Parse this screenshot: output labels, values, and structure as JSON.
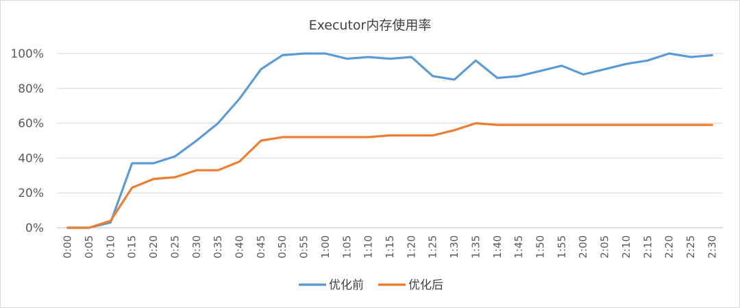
{
  "chart_data": {
    "type": "line",
    "title": "Executor内存使用率",
    "xlabel": "",
    "ylabel": "",
    "ylim": [
      0,
      100
    ],
    "yticks": [
      "0%",
      "20%",
      "40%",
      "60%",
      "80%",
      "100%"
    ],
    "categories": [
      "0:00",
      "0:05",
      "0:10",
      "0:15",
      "0:20",
      "0:25",
      "0:30",
      "0:35",
      "0:40",
      "0:45",
      "0:50",
      "0:55",
      "1:00",
      "1:05",
      "1:10",
      "1:15",
      "1:20",
      "1:25",
      "1:30",
      "1:35",
      "1:40",
      "1:45",
      "1:50",
      "1:55",
      "2:00",
      "2:05",
      "2:10",
      "2:15",
      "2:20",
      "2:25",
      "2:30"
    ],
    "series": [
      {
        "name": "优化前",
        "color": "#5b9bd5",
        "values": [
          0,
          0,
          3,
          37,
          37,
          41,
          50,
          60,
          74,
          91,
          99,
          100,
          100,
          97,
          98,
          97,
          98,
          87,
          85,
          96,
          86,
          87,
          90,
          93,
          88,
          91,
          94,
          96,
          100,
          98,
          99
        ]
      },
      {
        "name": "优化后",
        "color": "#ed7d31",
        "values": [
          0,
          0,
          4,
          23,
          28,
          29,
          33,
          33,
          38,
          50,
          52,
          52,
          52,
          52,
          52,
          53,
          53,
          53,
          56,
          60,
          59,
          59,
          59,
          59,
          59,
          59,
          59,
          59,
          59,
          59,
          59
        ]
      }
    ],
    "grid": true,
    "legend_position": "bottom"
  }
}
